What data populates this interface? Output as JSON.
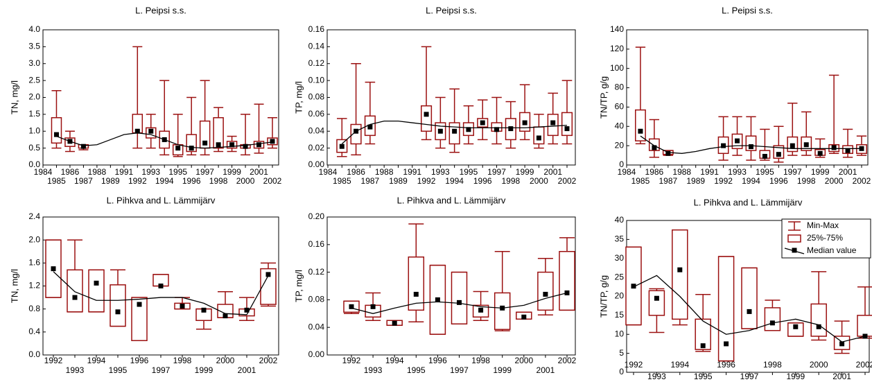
{
  "chart_data": [
    {
      "type": "box",
      "title": "L. Peipsi s.s.",
      "y_label": "TN, mg/l",
      "categories": [
        "1984",
        "1985",
        "1986",
        "1987",
        "1988",
        "1989",
        "1991",
        "1992",
        "1993",
        "1994",
        "1995",
        "1996",
        "1997",
        "1998",
        "1999",
        "2000",
        "2001",
        "2002"
      ],
      "min": [
        null,
        0.5,
        0.4,
        0.45,
        null,
        null,
        null,
        0.5,
        0.5,
        0.3,
        0.25,
        0.3,
        0.3,
        0.4,
        0.4,
        0.3,
        0.35,
        0.5
      ],
      "q1": [
        null,
        0.65,
        0.55,
        0.5,
        null,
        null,
        null,
        0.95,
        0.8,
        0.5,
        0.3,
        0.4,
        0.5,
        0.5,
        0.5,
        0.5,
        0.5,
        0.6
      ],
      "median": [
        null,
        0.9,
        0.7,
        0.55,
        null,
        null,
        null,
        1.0,
        1.0,
        0.75,
        0.5,
        0.5,
        0.65,
        0.6,
        0.6,
        0.55,
        0.6,
        0.7
      ],
      "q3": [
        null,
        1.4,
        0.8,
        0.6,
        null,
        null,
        null,
        1.5,
        1.1,
        1.0,
        0.6,
        0.9,
        1.3,
        1.4,
        0.7,
        0.6,
        0.7,
        0.8
      ],
      "max": [
        null,
        2.2,
        1.0,
        0.6,
        null,
        null,
        null,
        3.5,
        1.5,
        2.5,
        1.5,
        2.0,
        2.5,
        1.7,
        0.85,
        1.5,
        1.8,
        1.4
      ],
      "trend": [
        null,
        0.85,
        0.7,
        0.57,
        0.6,
        0.75,
        0.9,
        0.95,
        0.9,
        0.75,
        0.6,
        0.52,
        0.5,
        0.52,
        0.55,
        0.58,
        0.63,
        0.68
      ],
      "ylim": [
        0,
        4
      ],
      "yticks": [
        {
          "value": 0,
          "label": "0.0"
        },
        0.5,
        {
          "value": 1,
          "label": "1.0"
        },
        1.5,
        {
          "value": 2,
          "label": "2.0"
        },
        2.5,
        {
          "value": 3,
          "label": "3.0"
        },
        3.5,
        {
          "value": 4,
          "label": "4.0"
        }
      ],
      "color": "#9b1010"
    },
    {
      "type": "box",
      "title": "L. Peipsi s.s.",
      "y_label": "TP, mg/l",
      "categories": [
        "1984",
        "1985",
        "1986",
        "1987",
        "1988",
        "1989",
        "1991",
        "1992",
        "1993",
        "1994",
        "1995",
        "1996",
        "1997",
        "1998",
        "1999",
        "2000",
        "2001",
        "2002"
      ],
      "min": [
        null,
        0.01,
        0.012,
        0.025,
        null,
        null,
        null,
        0.03,
        0.02,
        0.015,
        0.025,
        0.03,
        0.025,
        0.02,
        0.03,
        0.02,
        0.025,
        0.025
      ],
      "q1": [
        null,
        0.015,
        0.025,
        0.035,
        null,
        null,
        null,
        0.04,
        0.03,
        0.025,
        0.035,
        0.045,
        0.04,
        0.03,
        0.04,
        0.025,
        0.035,
        0.035
      ],
      "median": [
        null,
        0.022,
        0.04,
        0.045,
        null,
        null,
        null,
        0.06,
        0.04,
        0.04,
        0.042,
        0.05,
        0.042,
        0.043,
        0.05,
        0.032,
        0.05,
        0.043
      ],
      "q3": [
        null,
        0.03,
        0.048,
        0.058,
        null,
        null,
        null,
        0.07,
        0.05,
        0.05,
        0.05,
        0.055,
        0.05,
        0.055,
        0.062,
        0.045,
        0.06,
        0.062
      ],
      "max": [
        null,
        0.055,
        0.12,
        0.098,
        null,
        null,
        null,
        0.14,
        0.08,
        0.09,
        0.07,
        0.077,
        0.08,
        0.075,
        0.095,
        0.06,
        0.085,
        0.1
      ],
      "trend": [
        null,
        0.025,
        0.04,
        0.048,
        0.052,
        0.052,
        0.05,
        0.048,
        0.046,
        0.045,
        0.044,
        0.044,
        0.044,
        0.044,
        0.044,
        0.045,
        0.046,
        0.047
      ],
      "ylim": [
        0,
        0.16
      ],
      "yticks": [
        {
          "value": 0,
          "label": "0.00"
        },
        0.02,
        0.04,
        0.06,
        0.08,
        {
          "value": 0.1,
          "label": "0.10"
        },
        0.12,
        0.14,
        0.16
      ],
      "color": "#9b1010"
    },
    {
      "type": "box",
      "title": "L. Peipsi s.s.",
      "y_label": "TN/TP, g/g",
      "categories": [
        "1984",
        "1985",
        "1986",
        "1987",
        "1988",
        "1989",
        "1991",
        "1992",
        "1993",
        "1994",
        "1995",
        "1996",
        "1997",
        "1998",
        "1999",
        "2000",
        "2001",
        "2002"
      ],
      "min": [
        null,
        22,
        8,
        10,
        null,
        null,
        null,
        5,
        10,
        5,
        5,
        3,
        10,
        10,
        8,
        12,
        8,
        10
      ],
      "q1": [
        null,
        25,
        15,
        11,
        null,
        null,
        null,
        12,
        17,
        15,
        7,
        7,
        14,
        15,
        10,
        14,
        12,
        12
      ],
      "median": [
        null,
        35,
        18,
        12,
        null,
        null,
        null,
        20,
        25,
        19,
        9,
        11,
        20,
        21,
        12,
        18,
        15,
        17
      ],
      "q3": [
        null,
        57,
        27,
        15,
        null,
        null,
        null,
        29,
        32,
        30,
        15,
        20,
        29,
        29,
        16,
        21,
        20,
        21
      ],
      "max": [
        null,
        122,
        47,
        15,
        null,
        null,
        null,
        50,
        50,
        50,
        37,
        40,
        64,
        55,
        27,
        93,
        37,
        30
      ],
      "trend": [
        null,
        30,
        20,
        13,
        12,
        14,
        17,
        19,
        20,
        20,
        19,
        18,
        17,
        17,
        17,
        17,
        17,
        17
      ],
      "ylim": [
        0,
        140
      ],
      "yticks": [
        0,
        20,
        40,
        60,
        80,
        100,
        120,
        140
      ],
      "color": "#9b1010"
    },
    {
      "type": "box",
      "title": "L. Pihkva and L. Lämmijärv",
      "y_label": "TN, mg/l",
      "categories": [
        "1992",
        "1993",
        "1994",
        "1995",
        "1996",
        "1997",
        "1998",
        "1999",
        "2000",
        "2001",
        "2002"
      ],
      "min": [
        1.0,
        0.75,
        0.75,
        0.5,
        0.25,
        1.2,
        0.8,
        0.45,
        0.65,
        0.6,
        0.85
      ],
      "q1": [
        1.0,
        0.75,
        0.75,
        0.5,
        0.25,
        1.2,
        0.8,
        0.6,
        0.65,
        0.68,
        0.88
      ],
      "median": [
        1.5,
        1.0,
        1.25,
        0.75,
        0.88,
        1.2,
        0.85,
        0.78,
        0.68,
        0.78,
        1.4
      ],
      "q3": [
        2.0,
        1.48,
        1.48,
        1.22,
        1.0,
        1.4,
        0.9,
        0.8,
        0.88,
        0.8,
        1.5
      ],
      "max": [
        2.0,
        2.0,
        1.48,
        1.48,
        1.0,
        1.4,
        1.0,
        0.8,
        1.1,
        1.0,
        1.6
      ],
      "trend": [
        1.45,
        1.1,
        0.95,
        0.95,
        0.97,
        1.0,
        1.0,
        0.9,
        0.72,
        0.7,
        1.38
      ],
      "ylim": [
        0,
        2.4
      ],
      "yticks": [
        {
          "value": 0,
          "label": "0.0"
        },
        0.4,
        0.8,
        1.2,
        1.6,
        {
          "value": 2,
          "label": "2.0"
        },
        2.4
      ],
      "color": "#9b1010"
    },
    {
      "type": "box",
      "title": "L. Pihkva and L. Lämmijärv",
      "y_label": "TP, mg/l",
      "categories": [
        "1992",
        "1993",
        "1994",
        "1995",
        "1996",
        "1997",
        "1998",
        "1999",
        "2000",
        "2001",
        "2002"
      ],
      "min": [
        0.06,
        0.05,
        0.043,
        0.048,
        0.03,
        0.045,
        0.05,
        0.035,
        0.052,
        0.058,
        0.065
      ],
      "q1": [
        0.062,
        0.055,
        0.043,
        0.065,
        0.03,
        0.045,
        0.055,
        0.037,
        0.052,
        0.065,
        0.065
      ],
      "median": [
        0.07,
        0.07,
        0.046,
        0.088,
        0.08,
        0.076,
        0.065,
        0.068,
        0.055,
        0.088,
        0.09
      ],
      "q3": [
        0.078,
        0.072,
        0.05,
        0.142,
        0.13,
        0.12,
        0.072,
        0.09,
        0.062,
        0.12,
        0.15
      ],
      "max": [
        0.078,
        0.09,
        0.05,
        0.19,
        0.13,
        0.12,
        0.092,
        0.15,
        0.062,
        0.14,
        0.17
      ],
      "trend": [
        0.068,
        0.06,
        0.068,
        0.075,
        0.077,
        0.075,
        0.07,
        0.068,
        0.072,
        0.082,
        0.09
      ],
      "ylim": [
        0,
        0.2
      ],
      "yticks": [
        {
          "value": 0,
          "label": "0.00"
        },
        0.04,
        0.08,
        0.12,
        0.16,
        {
          "value": 0.2,
          "label": "0.20"
        }
      ],
      "color": "#9b1010"
    },
    {
      "type": "box",
      "title": "L. Pihkva and L. Lämmijärv",
      "y_label": "TN/TP, g/g",
      "categories": [
        "1992",
        "1993",
        "1994",
        "1995",
        "1996",
        "1997",
        "1998",
        "1999",
        "2000",
        "2001",
        "2002"
      ],
      "min": [
        12.5,
        10.5,
        12.5,
        5.5,
        3,
        11.5,
        11,
        9.5,
        8.5,
        5,
        9
      ],
      "q1": [
        12.5,
        15,
        14,
        6,
        3,
        11.5,
        11,
        9.5,
        9.5,
        6,
        9.5
      ],
      "median": [
        22.7,
        19.5,
        27,
        7,
        7.5,
        16,
        13,
        12,
        12,
        7.5,
        9.5
      ],
      "q3": [
        33,
        21.5,
        37.5,
        14,
        30.5,
        27.5,
        17,
        13,
        18,
        9.5,
        15
      ],
      "max": [
        33,
        22,
        37.5,
        20.5,
        30.5,
        27.5,
        19,
        13,
        26.5,
        13.5,
        22.5
      ],
      "trend": [
        22.5,
        25.5,
        20,
        13.5,
        10,
        11,
        13,
        14,
        12.5,
        8,
        9.5
      ],
      "ylim": [
        0,
        40
      ],
      "yticks": [
        0,
        5,
        10,
        15,
        20,
        25,
        30,
        35,
        40
      ],
      "color": "#9b1010",
      "legend": {
        "min_max": "Min-Max",
        "box": "25%-75%",
        "median": "Median value"
      }
    }
  ]
}
